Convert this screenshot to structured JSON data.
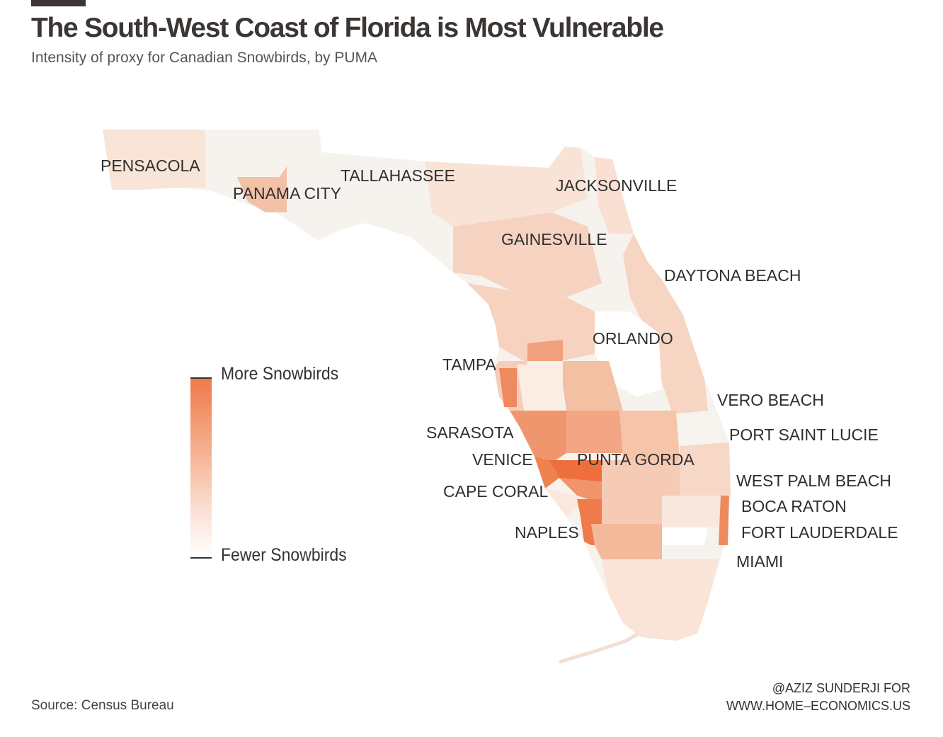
{
  "header": {
    "title": "The South-West Coast of Florida is Most Vulnerable",
    "subtitle": "Intensity of proxy for Canadian Snowbirds, by PUMA"
  },
  "legend": {
    "high_label": "More Snowbirds",
    "low_label": "Fewer Snowbirds",
    "high_color": "#ef7a4a",
    "low_color": "#ffffff"
  },
  "cities": [
    {
      "name": "PENSACOLA"
    },
    {
      "name": "PANAMA CITY"
    },
    {
      "name": "TALLAHASSEE"
    },
    {
      "name": "JACKSONVILLE"
    },
    {
      "name": "GAINESVILLE"
    },
    {
      "name": "DAYTONA BEACH"
    },
    {
      "name": "ORLANDO"
    },
    {
      "name": "TAMPA"
    },
    {
      "name": "VERO BEACH"
    },
    {
      "name": "SARASOTA"
    },
    {
      "name": "PORT SAINT LUCIE"
    },
    {
      "name": "VENICE"
    },
    {
      "name": "PUNTA GORDA"
    },
    {
      "name": "WEST PALM BEACH"
    },
    {
      "name": "CAPE CORAL"
    },
    {
      "name": "BOCA RATON"
    },
    {
      "name": "FORT LAUDERDALE"
    },
    {
      "name": "NAPLES"
    },
    {
      "name": "MIAMI"
    }
  ],
  "footer": {
    "source": "Source: Census Bureau",
    "credit_line1": "@AZIZ SUNDERJI FOR",
    "credit_line2": "WWW.HOME–ECONOMICS.US"
  },
  "colors": {
    "palest": "#f6f3ee",
    "light": "#f9e0d3",
    "medium": "#f3c1a6",
    "strong": "#f0a07c",
    "darkest": "#ee6e3c"
  }
}
